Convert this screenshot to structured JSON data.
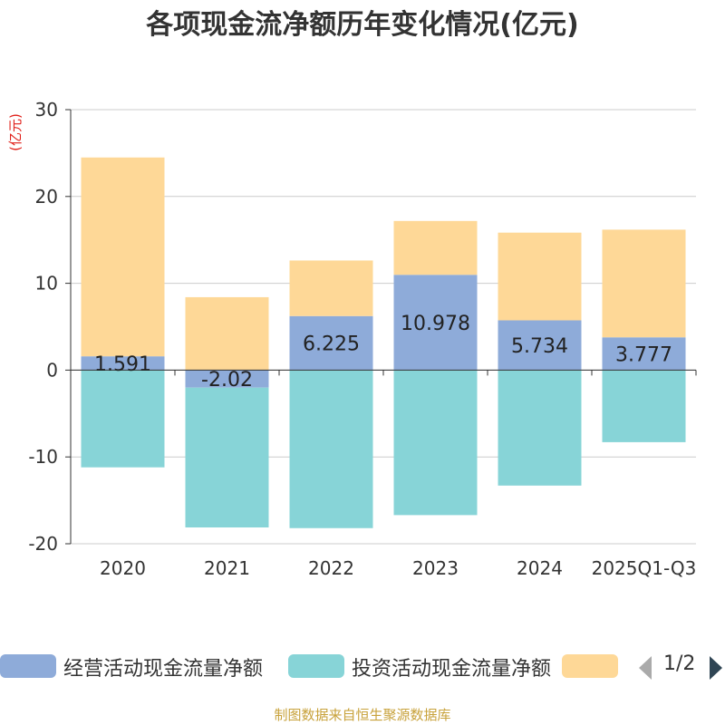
{
  "chart_data": {
    "type": "bar",
    "stacked": true,
    "title": "各项现金流净额历年变化情况(亿元)",
    "ylabel": "(亿元)",
    "xlabel": "",
    "ylim": [
      -20,
      30
    ],
    "yticks": [
      30,
      20,
      10,
      0,
      -10,
      -20
    ],
    "categories": [
      "2020",
      "2021",
      "2022",
      "2023",
      "2024",
      "2025Q1-Q3"
    ],
    "series": [
      {
        "name": "经营活动现金流量净额",
        "color": "#8eabd9",
        "values": [
          1.591,
          -2.02,
          6.225,
          10.978,
          5.734,
          3.777
        ],
        "labels": [
          "1.591",
          "-2.02",
          "6.225",
          "10.978",
          "5.734",
          "3.777"
        ]
      },
      {
        "name": "投资活动现金流量净额",
        "color": "#87d4d7",
        "values": [
          -11.2,
          -16.1,
          -18.2,
          -16.7,
          -13.3,
          -8.3
        ]
      },
      {
        "name": "",
        "color": "#fed897",
        "values": [
          22.9,
          8.4,
          6.4,
          6.2,
          10.1,
          12.4
        ]
      }
    ]
  },
  "legend": {
    "items": [
      {
        "name": "经营活动现金流量净额",
        "color": "#8eabd9"
      },
      {
        "name": "投资活动现金流量净额",
        "color": "#87d4d7"
      },
      {
        "name": "",
        "color": "#fed897"
      }
    ],
    "page": "1/2"
  },
  "source": "制图数据来自恒生聚源数据库"
}
